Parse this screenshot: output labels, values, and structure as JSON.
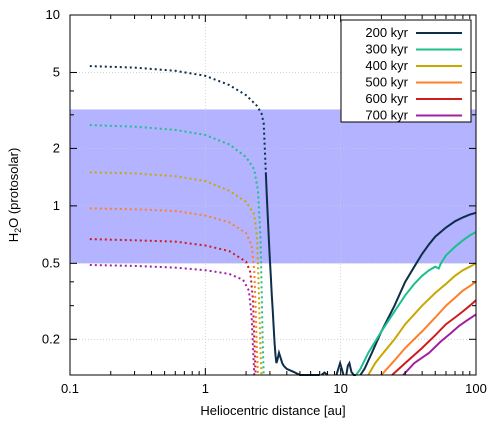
{
  "chart_data": {
    "type": "line",
    "xlabel": "Heliocentric distance [au]",
    "ylabel_main": "H",
    "ylabel_sub": "2",
    "ylabel_rest": "O (protosolar)",
    "x_scale": "log",
    "y_scale": "log",
    "xlim": [
      0.1,
      100
    ],
    "ylim": [
      0.13,
      10
    ],
    "x_ticks": [
      {
        "value": 0.1,
        "label": "0.1"
      },
      {
        "value": 1,
        "label": "1"
      },
      {
        "value": 10,
        "label": "10"
      },
      {
        "value": 100,
        "label": "100"
      }
    ],
    "y_ticks": [
      {
        "value": 0.2,
        "label": "0.2"
      },
      {
        "value": 0.5,
        "label": "0.5"
      },
      {
        "value": 1,
        "label": "1"
      },
      {
        "value": 2,
        "label": "2"
      },
      {
        "value": 5,
        "label": "5"
      },
      {
        "value": 10,
        "label": "10"
      }
    ],
    "grid": true,
    "band": {
      "y_range": [
        0.5,
        3.2
      ],
      "color": "#b3b3ff"
    },
    "legend_position": "top-right",
    "series": [
      {
        "name": "200 kyr",
        "color": "#0d2d4a",
        "dotted": [
          [
            0.14,
            5.4
          ],
          [
            0.3,
            5.3
          ],
          [
            0.6,
            5.1
          ],
          [
            1.0,
            4.8
          ],
          [
            1.5,
            4.3
          ],
          [
            2.0,
            3.8
          ],
          [
            2.4,
            3.35
          ],
          [
            2.6,
            3.05
          ],
          [
            2.7,
            2.7
          ],
          [
            2.75,
            2.0
          ],
          [
            2.8,
            1.5
          ]
        ],
        "solid": [
          [
            2.8,
            1.5
          ],
          [
            2.85,
            1.1
          ],
          [
            2.9,
            0.85
          ],
          [
            2.95,
            0.66
          ],
          [
            3.0,
            0.52
          ],
          [
            3.05,
            0.42
          ],
          [
            3.1,
            0.34
          ],
          [
            3.15,
            0.28
          ],
          [
            3.2,
            0.23
          ],
          [
            3.25,
            0.19
          ],
          [
            3.3,
            0.165
          ],
          [
            3.35,
            0.15
          ],
          [
            3.4,
            0.155
          ],
          [
            3.5,
            0.17
          ],
          [
            3.6,
            0.16
          ],
          [
            3.7,
            0.15
          ],
          [
            3.8,
            0.145
          ],
          [
            4.0,
            0.14
          ],
          [
            4.5,
            0.135
          ],
          [
            5.0,
            0.13
          ],
          [
            5.5,
            0.13
          ],
          [
            6.0,
            0.125
          ],
          [
            6.3,
            0.13
          ],
          [
            7.0,
            0.13
          ]
        ],
        "solid_segments": [
          [
            [
              7.2,
              0.13
            ],
            [
              7.6,
              0.134
            ],
            [
              8.0,
              0.13
            ]
          ],
          [
            [
              9.3,
              0.13
            ],
            [
              9.6,
              0.14
            ],
            [
              9.9,
              0.15
            ],
            [
              10.2,
              0.14
            ],
            [
              10.5,
              0.13
            ]
          ],
          [
            [
              11.0,
              0.13
            ],
            [
              11.3,
              0.145
            ],
            [
              11.6,
              0.15
            ],
            [
              12.0,
              0.135
            ],
            [
              12.5,
              0.13
            ],
            [
              13.0,
              0.13
            ]
          ],
          [
            [
              14.0,
              0.13
            ],
            [
              15,
              0.14
            ],
            [
              17,
              0.17
            ],
            [
              20,
              0.22
            ],
            [
              25,
              0.3
            ],
            [
              30,
              0.4
            ],
            [
              35,
              0.48
            ],
            [
              40,
              0.56
            ],
            [
              45,
              0.63
            ],
            [
              50,
              0.69
            ],
            [
              60,
              0.77
            ],
            [
              70,
              0.83
            ],
            [
              80,
              0.87
            ],
            [
              90,
              0.9
            ],
            [
              100,
              0.92
            ]
          ]
        ]
      },
      {
        "name": "300 kyr",
        "color": "#1dbf8c",
        "dotted": [
          [
            0.14,
            2.65
          ],
          [
            0.3,
            2.6
          ],
          [
            0.6,
            2.5
          ],
          [
            1.0,
            2.35
          ],
          [
            1.5,
            2.1
          ],
          [
            2.0,
            1.8
          ],
          [
            2.3,
            1.55
          ],
          [
            2.45,
            1.2
          ],
          [
            2.55,
            0.7
          ],
          [
            2.6,
            0.4
          ],
          [
            2.65,
            0.2
          ],
          [
            2.7,
            0.13
          ]
        ],
        "solid_segments": [
          [
            [
              13.0,
              0.13
            ],
            [
              14,
              0.14
            ],
            [
              16,
              0.17
            ],
            [
              20,
              0.22
            ],
            [
              25,
              0.28
            ],
            [
              30,
              0.34
            ],
            [
              35,
              0.39
            ],
            [
              40,
              0.43
            ],
            [
              45,
              0.46
            ],
            [
              50,
              0.48
            ],
            [
              53,
              0.47
            ],
            [
              55,
              0.5
            ],
            [
              60,
              0.55
            ],
            [
              70,
              0.61
            ],
            [
              80,
              0.66
            ],
            [
              90,
              0.7
            ],
            [
              100,
              0.73
            ]
          ]
        ]
      },
      {
        "name": "400 kyr",
        "color": "#c8a800",
        "dotted": [
          [
            0.14,
            1.5
          ],
          [
            0.3,
            1.48
          ],
          [
            0.6,
            1.43
          ],
          [
            1.0,
            1.35
          ],
          [
            1.5,
            1.2
          ],
          [
            2.0,
            1.05
          ],
          [
            2.3,
            0.9
          ],
          [
            2.4,
            0.7
          ],
          [
            2.45,
            0.5
          ],
          [
            2.5,
            0.3
          ],
          [
            2.55,
            0.18
          ],
          [
            2.6,
            0.13
          ]
        ],
        "solid_segments": [
          [
            [
              16.0,
              0.13
            ],
            [
              18,
              0.15
            ],
            [
              20,
              0.165
            ],
            [
              25,
              0.2
            ],
            [
              30,
              0.24
            ],
            [
              40,
              0.3
            ],
            [
              50,
              0.35
            ],
            [
              60,
              0.39
            ],
            [
              70,
              0.43
            ],
            [
              80,
              0.46
            ],
            [
              90,
              0.48
            ],
            [
              100,
              0.5
            ]
          ]
        ]
      },
      {
        "name": "500 kyr",
        "color": "#ff7f2a",
        "dotted": [
          [
            0.14,
            0.97
          ],
          [
            0.3,
            0.96
          ],
          [
            0.6,
            0.94
          ],
          [
            1.0,
            0.89
          ],
          [
            1.5,
            0.82
          ],
          [
            2.0,
            0.72
          ],
          [
            2.2,
            0.62
          ],
          [
            2.3,
            0.45
          ],
          [
            2.35,
            0.3
          ],
          [
            2.4,
            0.18
          ],
          [
            2.45,
            0.13
          ]
        ],
        "solid_segments": [
          [
            [
              20.0,
              0.13
            ],
            [
              25,
              0.155
            ],
            [
              30,
              0.18
            ],
            [
              40,
              0.22
            ],
            [
              50,
              0.26
            ],
            [
              60,
              0.3
            ],
            [
              70,
              0.33
            ],
            [
              80,
              0.36
            ],
            [
              90,
              0.38
            ],
            [
              100,
              0.4
            ]
          ]
        ]
      },
      {
        "name": "600 kyr",
        "color": "#d01c1c",
        "dotted": [
          [
            0.14,
            0.67
          ],
          [
            0.3,
            0.66
          ],
          [
            0.6,
            0.65
          ],
          [
            1.0,
            0.62
          ],
          [
            1.5,
            0.58
          ],
          [
            2.0,
            0.51
          ],
          [
            2.15,
            0.45
          ],
          [
            2.25,
            0.32
          ],
          [
            2.3,
            0.2
          ],
          [
            2.35,
            0.13
          ]
        ],
        "solid_segments": [
          [
            [
              24.0,
              0.13
            ],
            [
              30,
              0.15
            ],
            [
              40,
              0.18
            ],
            [
              50,
              0.21
            ],
            [
              60,
              0.24
            ],
            [
              70,
              0.26
            ],
            [
              80,
              0.28
            ],
            [
              90,
              0.3
            ],
            [
              100,
              0.32
            ]
          ]
        ]
      },
      {
        "name": "700 kyr",
        "color": "#a020a0",
        "dotted": [
          [
            0.14,
            0.49
          ],
          [
            0.3,
            0.485
          ],
          [
            0.6,
            0.475
          ],
          [
            1.0,
            0.46
          ],
          [
            1.5,
            0.44
          ],
          [
            1.9,
            0.41
          ],
          [
            2.1,
            0.36
          ],
          [
            2.2,
            0.26
          ],
          [
            2.25,
            0.18
          ],
          [
            2.3,
            0.13
          ]
        ],
        "solid_segments": [
          [
            [
              29.0,
              0.13
            ],
            [
              35,
              0.15
            ],
            [
              45,
              0.17
            ],
            [
              55,
              0.195
            ],
            [
              65,
              0.215
            ],
            [
              75,
              0.235
            ],
            [
              85,
              0.25
            ],
            [
              100,
              0.27
            ]
          ]
        ]
      }
    ]
  }
}
